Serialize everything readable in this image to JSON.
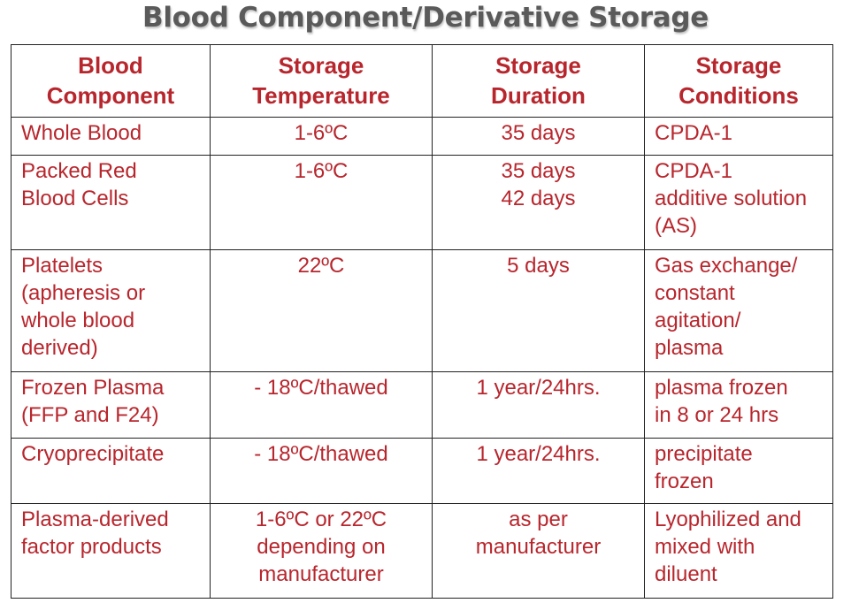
{
  "title": "Blood Component/Derivative Storage",
  "headers": [
    "Blood\nComponent",
    "Storage\nTemperature",
    "Storage\nDuration",
    "Storage\nConditions"
  ],
  "rows": [
    {
      "component": [
        "Whole Blood"
      ],
      "temperature": [
        "1-6ºC"
      ],
      "duration": [
        "35 days"
      ],
      "conditions": [
        "CPDA-1"
      ]
    },
    {
      "component": [
        "Packed Red",
        "Blood Cells"
      ],
      "temperature": [
        "1-6ºC"
      ],
      "duration": [
        "35 days",
        "42 days"
      ],
      "conditions": [
        "CPDA-1",
        "additive solution",
        "(AS)"
      ]
    },
    {
      "component": [
        "Platelets",
        "(apheresis or",
        "whole blood",
        "derived)"
      ],
      "temperature": [
        "22ºC"
      ],
      "duration": [
        "5 days"
      ],
      "conditions": [
        "Gas exchange/",
        "constant",
        "agitation/",
        "plasma"
      ]
    },
    {
      "component": [
        "Frozen Plasma",
        "(FFP and F24)"
      ],
      "temperature": [
        "- 18ºC/thawed"
      ],
      "duration": [
        "1 year/24hrs."
      ],
      "conditions": [
        "plasma frozen",
        "in 8 or 24 hrs"
      ]
    },
    {
      "component": [
        "Cryoprecipitate"
      ],
      "temperature": [
        "- 18ºC/thawed"
      ],
      "duration": [
        "1 year/24hrs."
      ],
      "conditions": [
        "precipitate",
        "frozen"
      ]
    },
    {
      "component": [
        "Plasma-derived",
        "factor products"
      ],
      "temperature": [
        "1-6ºC or 22ºC",
        "depending on",
        "manufacturer"
      ],
      "duration": [
        "as per",
        "manufacturer"
      ],
      "conditions": [
        "Lyophilized and",
        "mixed with",
        "diluent"
      ]
    }
  ],
  "colors": {
    "table_text": "#b8262d",
    "title_text": "#5a5a5a",
    "border": "#222222"
  }
}
